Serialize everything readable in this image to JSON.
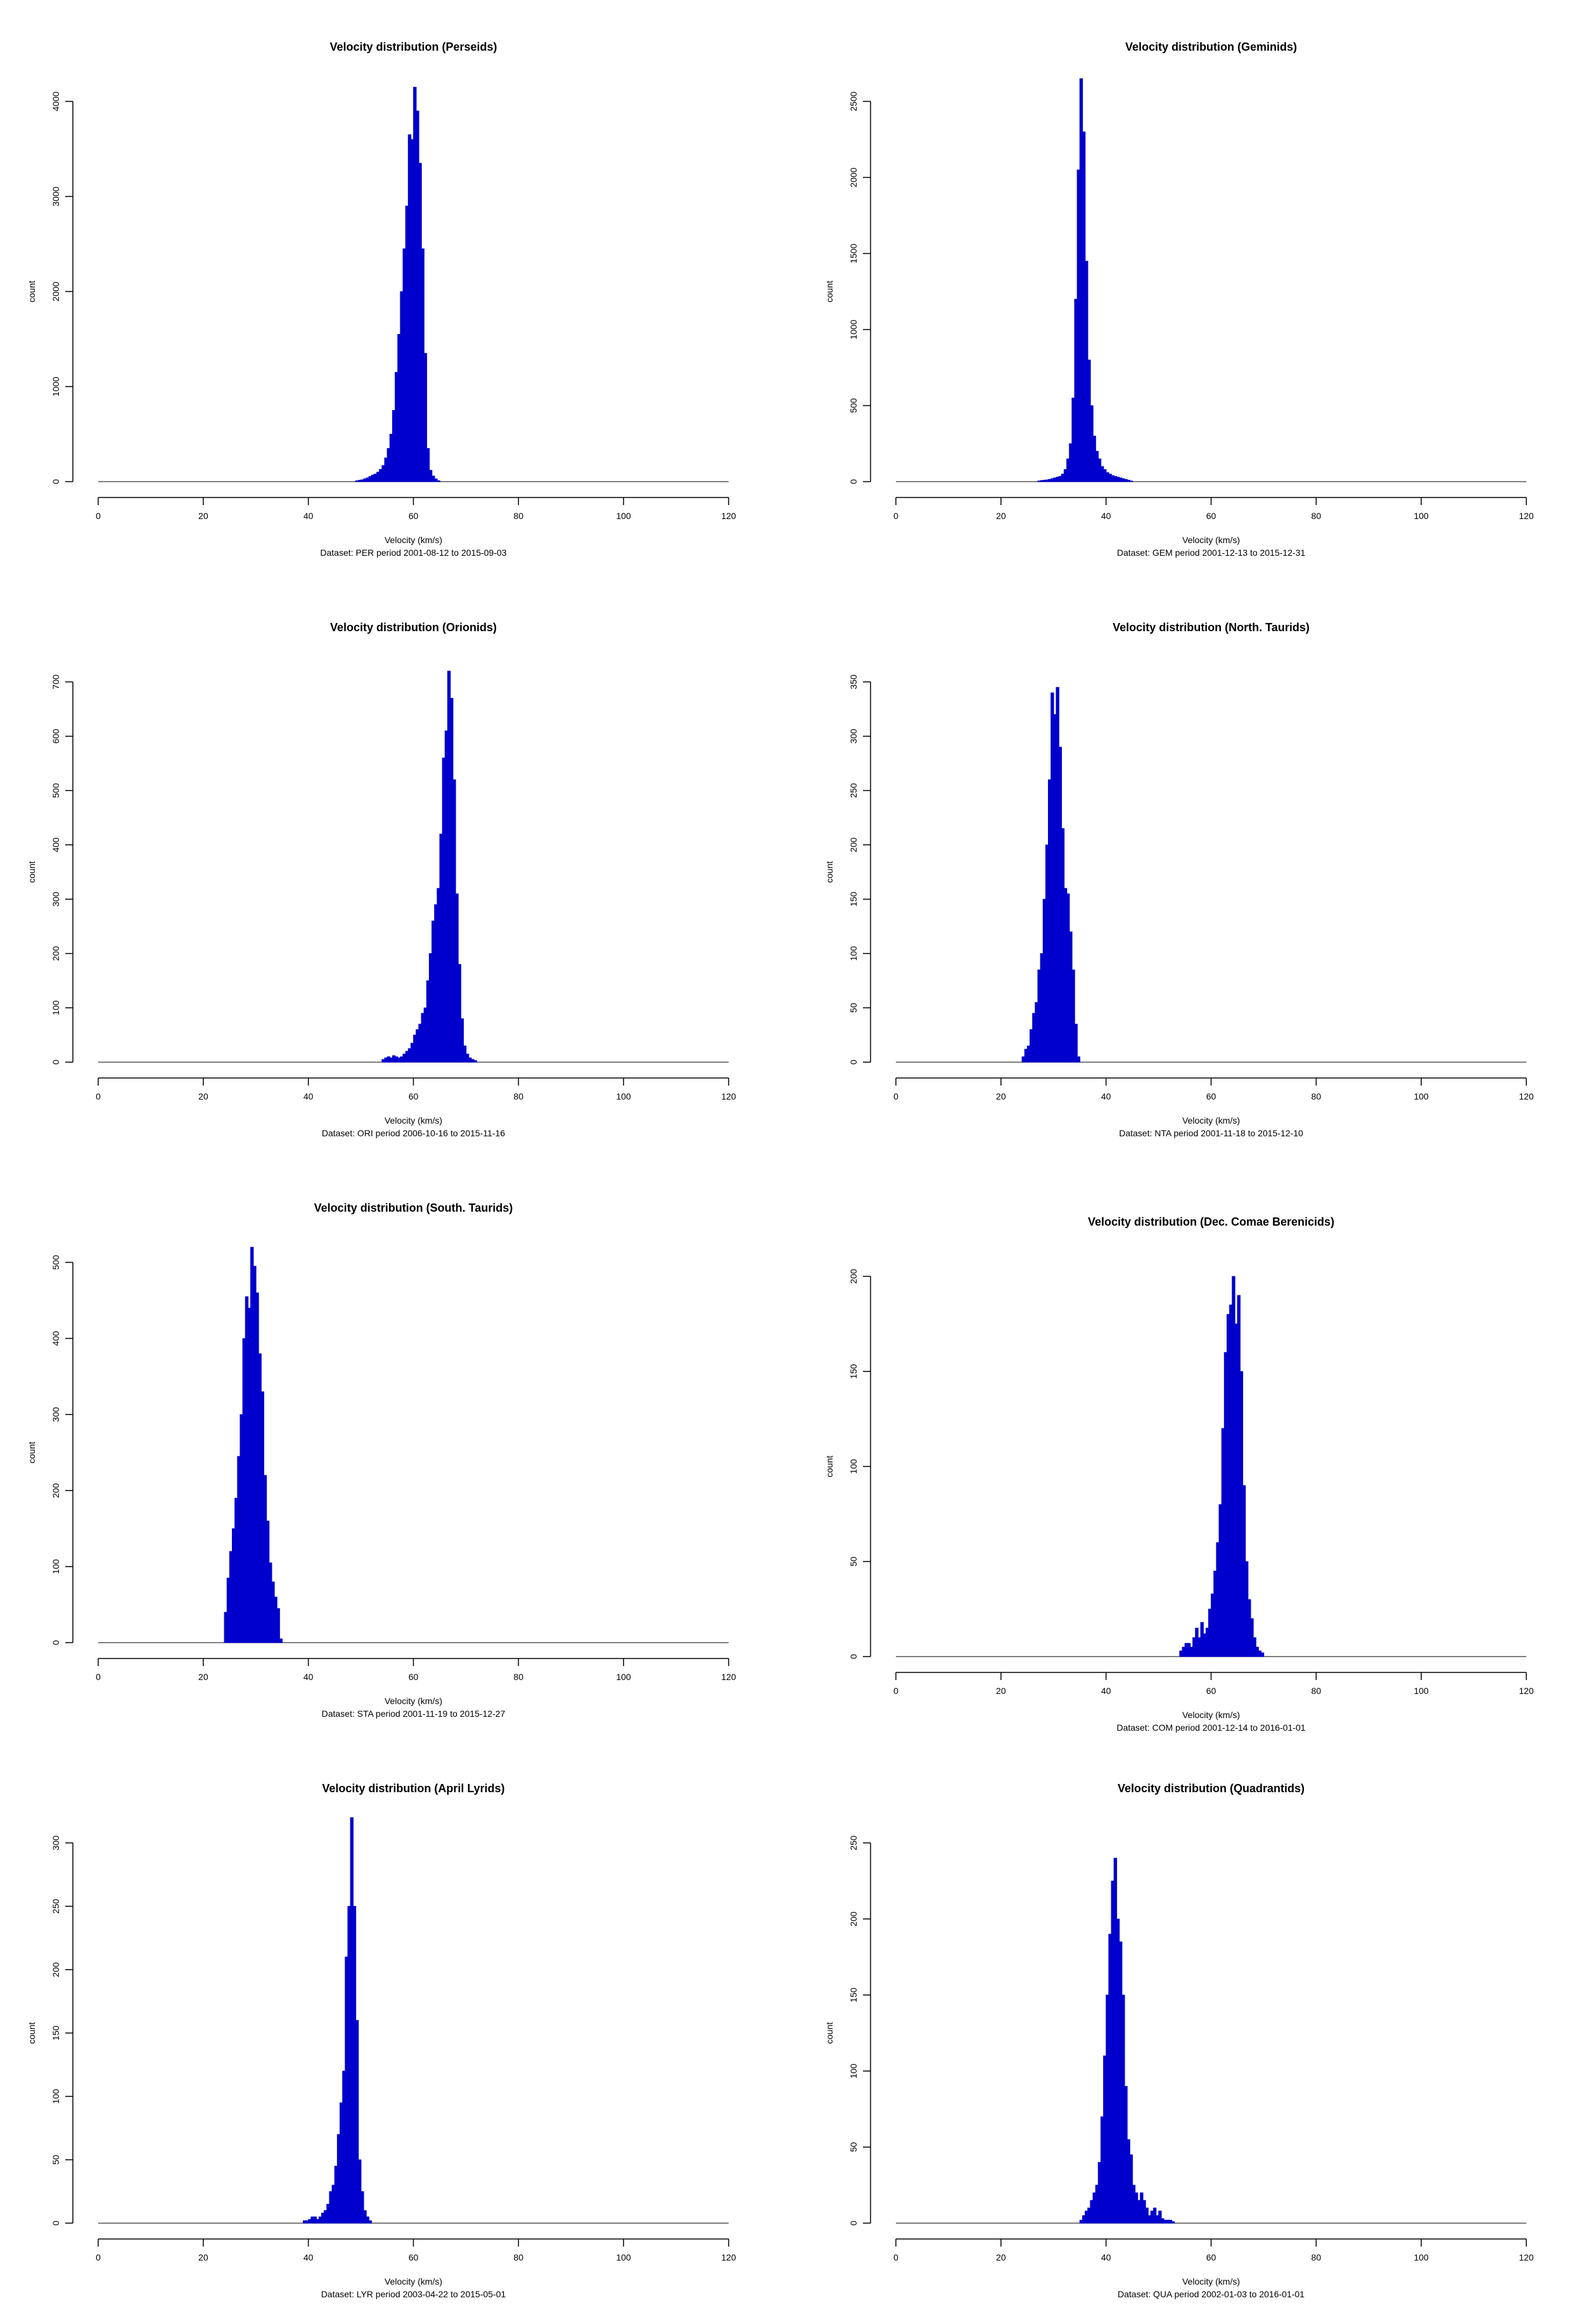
{
  "chart_data": [
    {
      "type": "bar",
      "title": "Velocity distribution (Perseids)",
      "xlabel": "Velocity (km/s)",
      "ylabel": "count",
      "subtitle": "Dataset: PER period 2001-08-12 to 2015-09-03",
      "xlim": [
        0,
        120
      ],
      "ylim": [
        0,
        4000
      ],
      "xticks": [
        0,
        20,
        40,
        60,
        80,
        100,
        120
      ],
      "yticks": [
        0,
        1000,
        2000,
        3000,
        4000
      ],
      "color": "#0000cd",
      "bin_width": 0.5,
      "x": [
        49,
        49.5,
        50,
        50.5,
        51,
        51.5,
        52,
        52.5,
        53,
        53.5,
        54,
        54.5,
        55,
        55.5,
        56,
        56.5,
        57,
        57.5,
        58,
        58.5,
        59,
        59.5,
        60,
        60.5,
        61,
        61.5,
        62,
        62.5,
        63,
        63.5,
        64,
        64.5
      ],
      "values": [
        10,
        15,
        20,
        30,
        40,
        55,
        70,
        80,
        100,
        130,
        170,
        250,
        350,
        500,
        750,
        1150,
        1550,
        2000,
        2450,
        2900,
        3650,
        3600,
        4150,
        3900,
        3350,
        2450,
        1350,
        350,
        120,
        60,
        30,
        10
      ]
    },
    {
      "type": "bar",
      "title": "Velocity distribution (Geminids)",
      "xlabel": "Velocity (km/s)",
      "ylabel": "count",
      "subtitle": "Dataset: GEM period 2001-12-13 to 2015-12-31",
      "xlim": [
        0,
        120
      ],
      "ylim": [
        0,
        2500
      ],
      "xticks": [
        0,
        20,
        40,
        60,
        80,
        100,
        120
      ],
      "yticks": [
        0,
        500,
        1000,
        1500,
        2000,
        2500
      ],
      "color": "#0000cd",
      "bin_width": 0.5,
      "x": [
        27,
        27.5,
        28,
        28.5,
        29,
        29.5,
        30,
        30.5,
        31,
        31.5,
        32,
        32.5,
        33,
        33.5,
        34,
        34.5,
        35,
        35.5,
        36,
        36.5,
        37,
        37.5,
        38,
        38.5,
        39,
        39.5,
        40,
        40.5,
        41,
        41.5,
        42,
        42.5,
        43,
        43.5,
        44,
        44.5
      ],
      "values": [
        5,
        8,
        10,
        12,
        15,
        20,
        25,
        30,
        35,
        50,
        80,
        150,
        250,
        550,
        1200,
        2050,
        2650,
        2300,
        1450,
        800,
        500,
        300,
        200,
        150,
        100,
        80,
        60,
        50,
        40,
        35,
        30,
        25,
        20,
        15,
        10,
        5
      ]
    },
    {
      "type": "bar",
      "title": "Velocity distribution (Orionids)",
      "xlabel": "Velocity (km/s)",
      "ylabel": "count",
      "subtitle": "Dataset: ORI period 2006-10-16 to 2015-11-16",
      "xlim": [
        0,
        120
      ],
      "ylim": [
        0,
        700
      ],
      "xticks": [
        0,
        20,
        40,
        60,
        80,
        100,
        120
      ],
      "yticks": [
        0,
        100,
        200,
        300,
        400,
        500,
        600,
        700
      ],
      "color": "#0000cd",
      "bin_width": 0.5,
      "x": [
        54,
        54.5,
        55,
        55.5,
        56,
        56.5,
        57,
        57.5,
        58,
        58.5,
        59,
        59.5,
        60,
        60.5,
        61,
        61.5,
        62,
        62.5,
        63,
        63.5,
        64,
        64.5,
        65,
        65.5,
        66,
        66.5,
        67,
        67.5,
        68,
        68.5,
        69,
        69.5,
        70,
        70.5,
        71,
        71.5
      ],
      "values": [
        5,
        8,
        10,
        8,
        12,
        10,
        8,
        10,
        15,
        20,
        25,
        35,
        50,
        60,
        70,
        90,
        100,
        150,
        200,
        260,
        290,
        320,
        420,
        560,
        610,
        720,
        670,
        520,
        310,
        180,
        80,
        30,
        15,
        8,
        5,
        3
      ]
    },
    {
      "type": "bar",
      "title": "Velocity distribution (North. Taurids)",
      "xlabel": "Velocity (km/s)",
      "ylabel": "count",
      "subtitle": "Dataset: NTA period 2001-11-18 to 2015-12-10",
      "xlim": [
        0,
        120
      ],
      "ylim": [
        0,
        350
      ],
      "xticks": [
        0,
        20,
        40,
        60,
        80,
        100,
        120
      ],
      "yticks": [
        0,
        50,
        100,
        150,
        200,
        250,
        300,
        350
      ],
      "color": "#0000cd",
      "bin_width": 0.5,
      "x": [
        24,
        24.5,
        25,
        25.5,
        26,
        26.5,
        27,
        27.5,
        28,
        28.5,
        29,
        29.5,
        30,
        30.5,
        31,
        31.5,
        32,
        32.5,
        33,
        33.5,
        34,
        34.5
      ],
      "values": [
        5,
        12,
        15,
        30,
        45,
        55,
        85,
        100,
        150,
        200,
        260,
        340,
        320,
        345,
        290,
        215,
        160,
        155,
        120,
        85,
        35,
        5
      ]
    },
    {
      "type": "bar",
      "title": "Velocity distribution (South. Taurids)",
      "xlabel": "Velocity (km/s)",
      "ylabel": "count",
      "subtitle": "Dataset: STA period 2001-11-19 to 2015-12-27",
      "xlim": [
        0,
        120
      ],
      "ylim": [
        0,
        500
      ],
      "xticks": [
        0,
        20,
        40,
        60,
        80,
        100,
        120
      ],
      "yticks": [
        0,
        100,
        200,
        300,
        400,
        500
      ],
      "color": "#0000cd",
      "bin_width": 0.5,
      "x": [
        24,
        24.5,
        25,
        25.5,
        26,
        26.5,
        27,
        27.5,
        28,
        28.5,
        29,
        29.5,
        30,
        30.5,
        31,
        31.5,
        32,
        32.5,
        33,
        33.5,
        34,
        34.5
      ],
      "values": [
        40,
        85,
        120,
        150,
        190,
        245,
        300,
        400,
        455,
        440,
        520,
        495,
        460,
        380,
        330,
        220,
        160,
        105,
        80,
        60,
        45,
        5
      ]
    },
    {
      "type": "bar",
      "title": "Velocity distribution (Dec. Comae Berenicids)",
      "xlabel": "Velocity (km/s)",
      "ylabel": "count",
      "subtitle": "Dataset: COM period 2001-12-14 to 2016-01-01",
      "xlim": [
        0,
        120
      ],
      "ylim": [
        0,
        200
      ],
      "xticks": [
        0,
        20,
        40,
        60,
        80,
        100,
        120
      ],
      "yticks": [
        0,
        50,
        100,
        150,
        200
      ],
      "color": "#0000cd",
      "bin_width": 0.5,
      "x": [
        54,
        54.5,
        55,
        55.5,
        56,
        56.5,
        57,
        57.5,
        58,
        58.5,
        59,
        59.5,
        60,
        60.5,
        61,
        61.5,
        62,
        62.5,
        63,
        63.5,
        64,
        64.5,
        65,
        65.5,
        66,
        66.5,
        67,
        67.5,
        68,
        68.5,
        69,
        69.5
      ],
      "values": [
        3,
        5,
        7,
        7,
        5,
        10,
        15,
        10,
        18,
        12,
        15,
        25,
        33,
        45,
        60,
        80,
        120,
        160,
        180,
        185,
        200,
        175,
        190,
        150,
        90,
        50,
        30,
        20,
        10,
        5,
        3,
        2
      ]
    },
    {
      "type": "bar",
      "title": "Velocity distribution (April Lyrids)",
      "xlabel": "Velocity (km/s)",
      "ylabel": "count",
      "subtitle": "Dataset: LYR period 2003-04-22 to 2015-05-01",
      "xlim": [
        0,
        120
      ],
      "ylim": [
        0,
        300
      ],
      "xticks": [
        0,
        20,
        40,
        60,
        80,
        100,
        120
      ],
      "yticks": [
        0,
        50,
        100,
        150,
        200,
        250,
        300
      ],
      "color": "#0000cd",
      "bin_width": 0.5,
      "x": [
        39,
        39.5,
        40,
        40.5,
        41,
        41.5,
        42,
        42.5,
        43,
        43.5,
        44,
        44.5,
        45,
        45.5,
        46,
        46.5,
        47,
        47.5,
        48,
        48.5,
        49,
        49.5,
        50,
        50.5,
        51,
        51.5
      ],
      "values": [
        2,
        2,
        3,
        5,
        5,
        3,
        5,
        8,
        10,
        15,
        25,
        30,
        45,
        70,
        95,
        120,
        210,
        250,
        320,
        250,
        160,
        50,
        25,
        10,
        5,
        2
      ]
    },
    {
      "type": "bar",
      "title": "Velocity distribution (Quadrantids)",
      "xlabel": "Velocity (km/s)",
      "ylabel": "count",
      "subtitle": "Dataset: QUA period 2002-01-03 to 2016-01-01",
      "xlim": [
        0,
        120
      ],
      "ylim": [
        0,
        250
      ],
      "xticks": [
        0,
        20,
        40,
        60,
        80,
        100,
        120
      ],
      "yticks": [
        0,
        50,
        100,
        150,
        200,
        250
      ],
      "color": "#0000cd",
      "bin_width": 0.5,
      "x": [
        35,
        35.5,
        36,
        36.5,
        37,
        37.5,
        38,
        38.5,
        39,
        39.5,
        40,
        40.5,
        41,
        41.5,
        42,
        42.5,
        43,
        43.5,
        44,
        44.5,
        45,
        45.5,
        46,
        46.5,
        47,
        47.5,
        48,
        48.5,
        49,
        49.5,
        50,
        50.5,
        51,
        51.5,
        52,
        52.5
      ],
      "values": [
        2,
        5,
        8,
        10,
        15,
        20,
        25,
        40,
        70,
        110,
        150,
        190,
        225,
        240,
        200,
        185,
        150,
        90,
        55,
        45,
        25,
        20,
        15,
        20,
        15,
        10,
        5,
        8,
        10,
        5,
        8,
        3,
        2,
        2,
        2,
        1
      ]
    }
  ]
}
